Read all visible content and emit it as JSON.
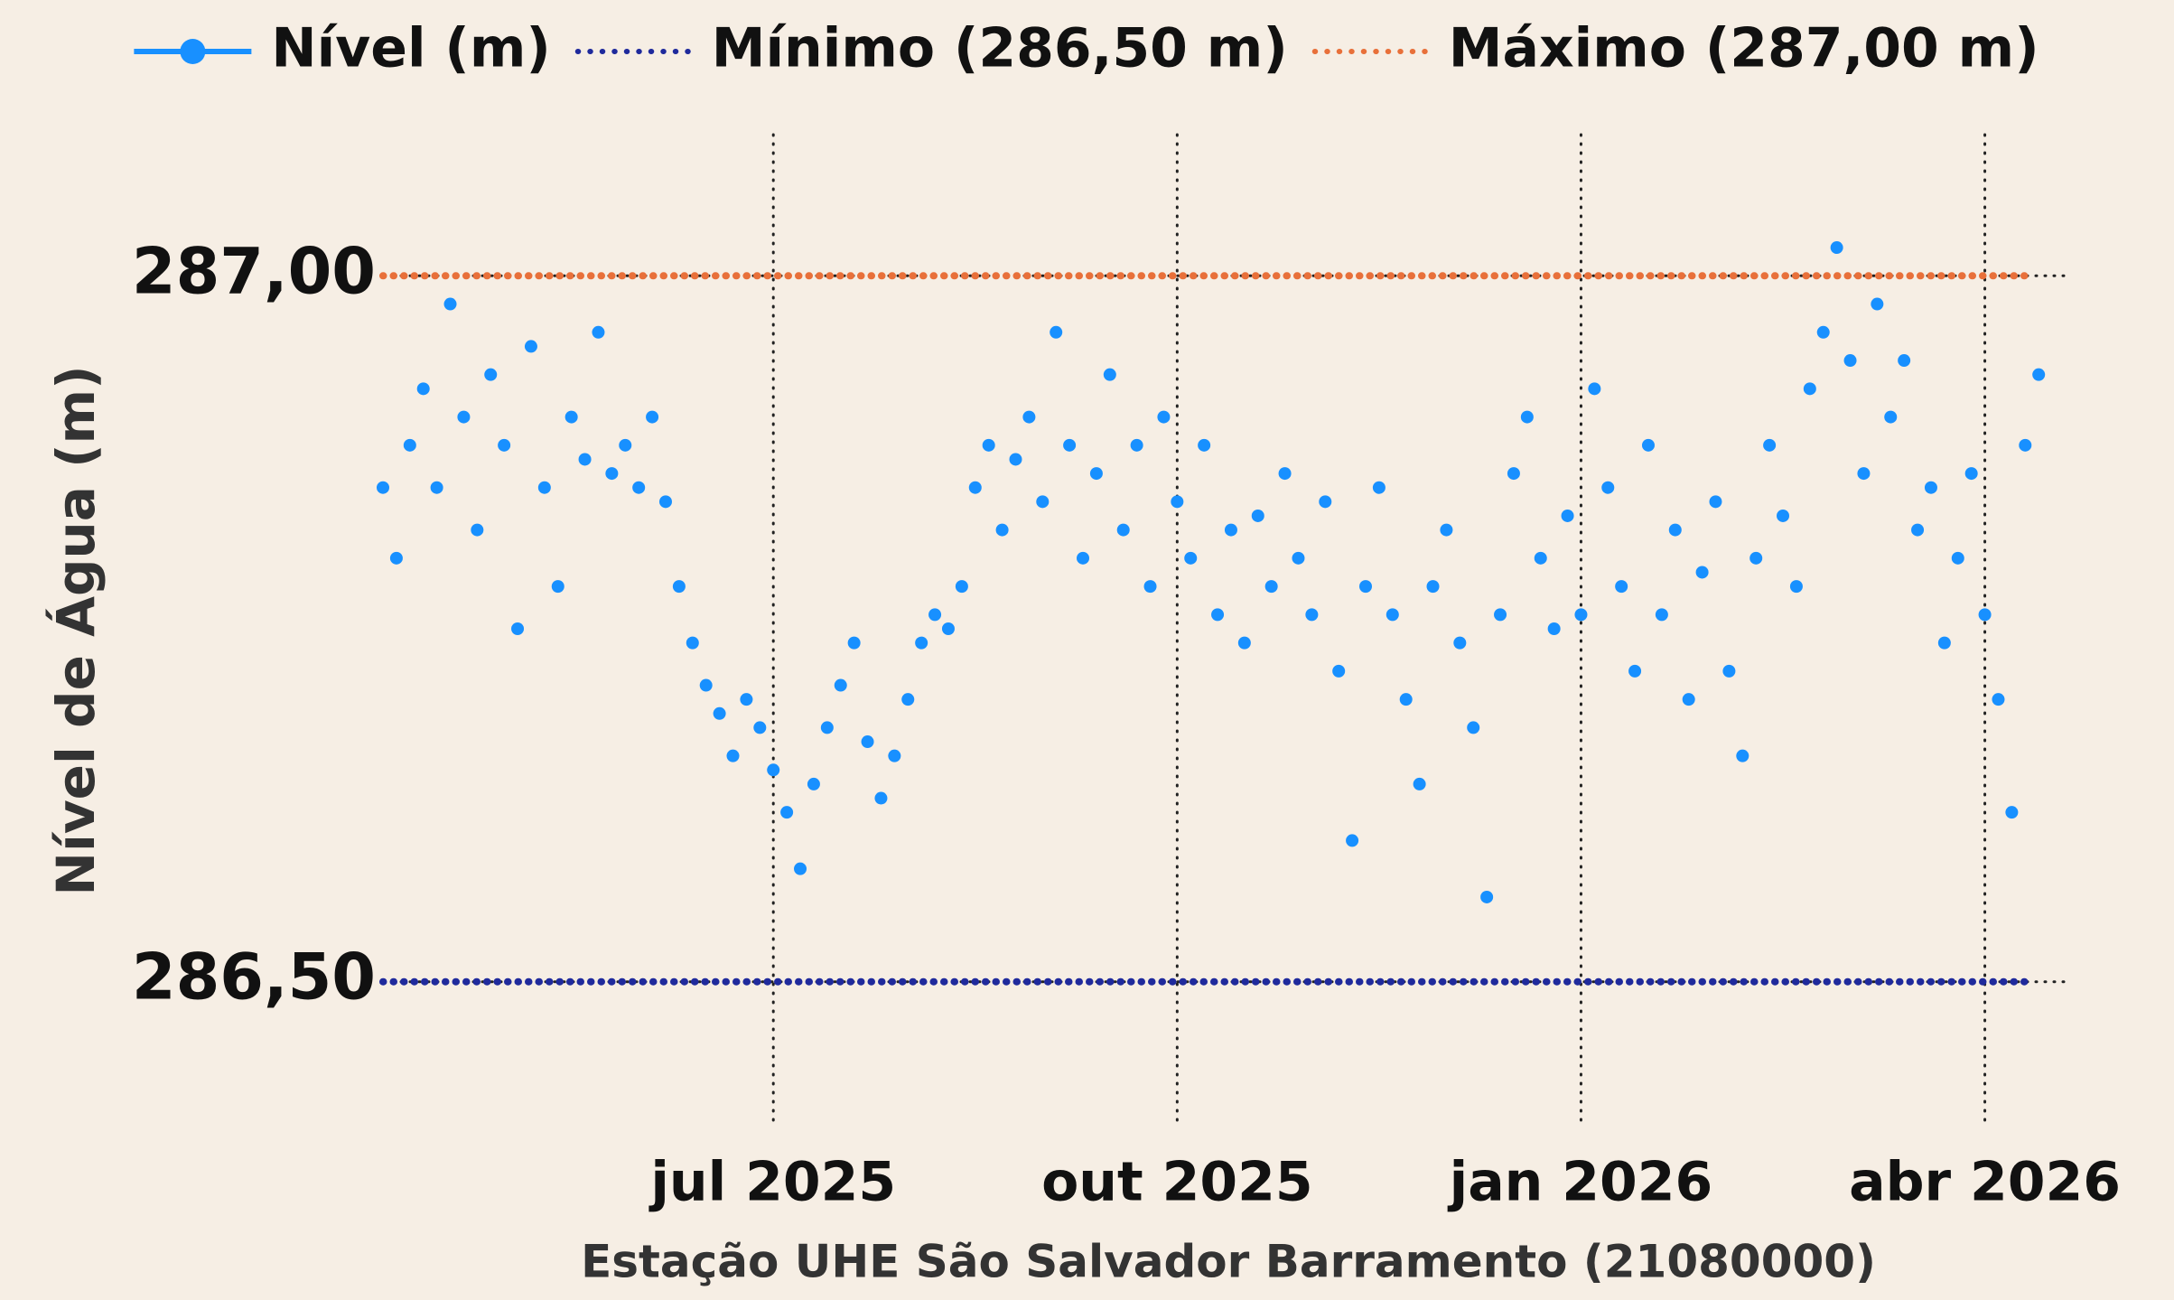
{
  "chart_data": {
    "type": "scatter",
    "y_label": "Nível de Água (m)",
    "x_label": "Estação UHE São Salvador Barramento (21080000)",
    "xlim": [
      4.1,
      16.6
    ],
    "xticks": [
      {
        "value": 7,
        "label": "jul 2025"
      },
      {
        "value": 10,
        "label": "out 2025"
      },
      {
        "value": 13,
        "label": "jan 2026"
      },
      {
        "value": 16,
        "label": "abr 2026"
      }
    ],
    "ylim": [
      286.4,
      287.1
    ],
    "yticks": [
      {
        "value": 286.5,
        "label": "286,50"
      },
      {
        "value": 287,
        "label": "287,00"
      }
    ],
    "grid": true,
    "legend": "top",
    "series": [
      {
        "name": "Nível (m)",
        "color": "#1890ff",
        "x": [
          4.1,
          4.2,
          4.3,
          4.4,
          4.5,
          4.6,
          4.7,
          4.8,
          4.9,
          5.0,
          5.1,
          5.2,
          5.3,
          5.4,
          5.5,
          5.6,
          5.7,
          5.8,
          5.9,
          6.0,
          6.1,
          6.2,
          6.3,
          6.4,
          6.5,
          6.6,
          6.7,
          6.8,
          6.9,
          7.0,
          7.1,
          7.2,
          7.3,
          7.4,
          7.5,
          7.6,
          7.7,
          7.8,
          7.9,
          8.0,
          8.1,
          8.2,
          8.3,
          8.4,
          8.5,
          8.6,
          8.7,
          8.8,
          8.9,
          9.0,
          9.1,
          9.2,
          9.3,
          9.4,
          9.5,
          9.6,
          9.7,
          9.8,
          9.9,
          10.0,
          10.1,
          10.2,
          10.3,
          10.4,
          10.5,
          10.6,
          10.7,
          10.8,
          10.9,
          11.0,
          11.1,
          11.2,
          11.3,
          11.4,
          11.5,
          11.6,
          11.7,
          11.8,
          11.9,
          12.0,
          12.1,
          12.2,
          12.3,
          12.4,
          12.5,
          12.6,
          12.7,
          12.8,
          12.9,
          13.0,
          13.1,
          13.2,
          13.3,
          13.4,
          13.5,
          13.6,
          13.7,
          13.8,
          13.9,
          14.0,
          14.1,
          14.2,
          14.3,
          14.4,
          14.5,
          14.6,
          14.7,
          14.8,
          14.9,
          15.0,
          15.1,
          15.2,
          15.3,
          15.4,
          15.5,
          15.6,
          15.7,
          15.8,
          15.9,
          16.0,
          16.1,
          16.2,
          16.3,
          16.4
        ],
        "values": [
          286.85,
          286.8,
          286.88,
          286.92,
          286.85,
          286.98,
          286.9,
          286.82,
          286.93,
          286.88,
          286.75,
          286.95,
          286.85,
          286.78,
          286.9,
          286.87,
          286.96,
          286.86,
          286.88,
          286.85,
          286.9,
          286.84,
          286.78,
          286.74,
          286.71,
          286.69,
          286.66,
          286.7,
          286.68,
          286.65,
          286.62,
          286.58,
          286.64,
          286.68,
          286.71,
          286.74,
          286.67,
          286.63,
          286.66,
          286.7,
          286.74,
          286.76,
          286.75,
          286.78,
          286.85,
          286.88,
          286.82,
          286.87,
          286.9,
          286.84,
          286.96,
          286.88,
          286.8,
          286.86,
          286.93,
          286.82,
          286.88,
          286.78,
          286.9,
          286.84,
          286.8,
          286.88,
          286.76,
          286.82,
          286.74,
          286.83,
          286.78,
          286.86,
          286.8,
          286.76,
          286.84,
          286.72,
          286.6,
          286.78,
          286.85,
          286.76,
          286.7,
          286.64,
          286.78,
          286.82,
          286.74,
          286.68,
          286.56,
          286.76,
          286.86,
          286.9,
          286.8,
          286.75,
          286.83,
          286.76,
          286.92,
          286.85,
          286.78,
          286.72,
          286.88,
          286.76,
          286.82,
          286.7,
          286.79,
          286.84,
          286.72,
          286.66,
          286.8,
          286.88,
          286.83,
          286.78,
          286.92,
          286.96,
          287.02,
          286.94,
          286.86,
          286.98,
          286.9,
          286.94,
          286.82,
          286.85,
          286.74,
          286.8,
          286.86,
          286.76,
          286.7,
          286.62,
          286.88,
          286.93
        ]
      }
    ],
    "reference_lines": [
      {
        "name": "Mínimo (286,50 m)",
        "value": 286.5,
        "color": "#1f2a9c"
      },
      {
        "name": "Máximo (287,00 m)",
        "value": 287,
        "color": "#e8703a"
      }
    ]
  }
}
